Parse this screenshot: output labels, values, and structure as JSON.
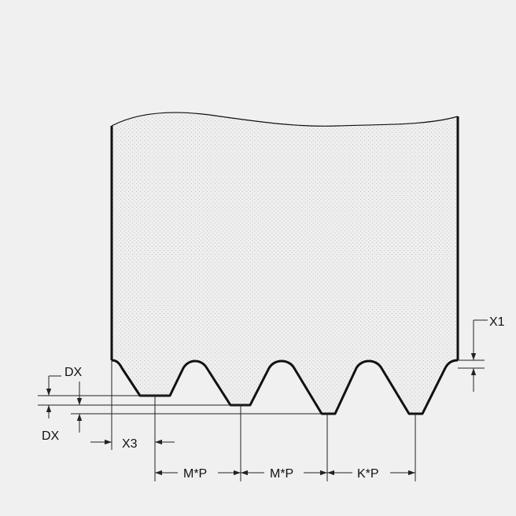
{
  "labels": {
    "dx_top": "DX",
    "dx_bottom": "DX",
    "x1": "X1",
    "x3": "X3",
    "mp_1": "M*P",
    "mp_2": "M*P",
    "kp": "K*P"
  },
  "colors": {
    "background": "#f0f0f0",
    "part_fill": "#efefef",
    "stipple": "#b8b8b8",
    "outline": "#111111",
    "dimension": "#222222"
  }
}
